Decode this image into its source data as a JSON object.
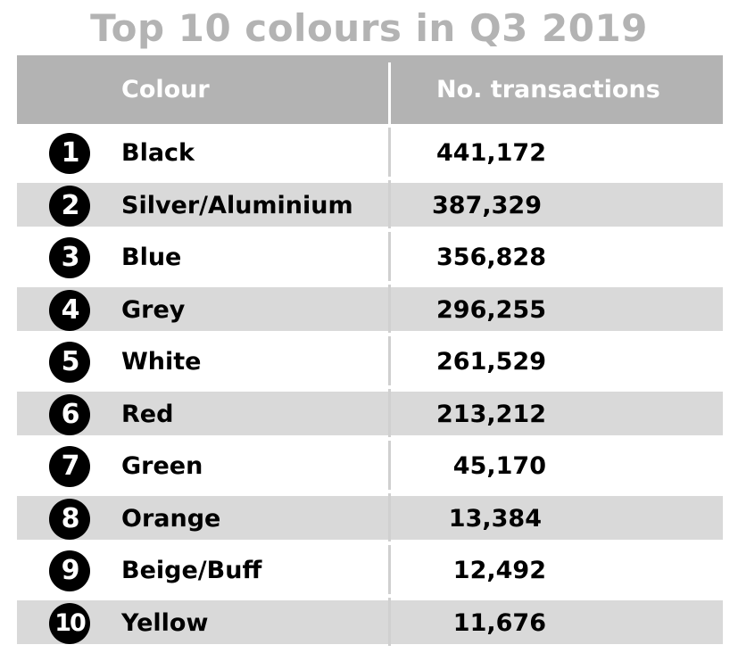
{
  "chart_data": {
    "type": "table",
    "title": "Top 10 colours in Q3 2019",
    "columns": [
      "Colour",
      "No. transactions"
    ],
    "rows": [
      {
        "rank": "1",
        "colour": "Black",
        "transactions": "441,172"
      },
      {
        "rank": "2",
        "colour": "Silver/Aluminium",
        "transactions": "387,329"
      },
      {
        "rank": "3",
        "colour": "Blue",
        "transactions": "356,828"
      },
      {
        "rank": "4",
        "colour": "Grey",
        "transactions": "296,255"
      },
      {
        "rank": "5",
        "colour": "White",
        "transactions": "261,529"
      },
      {
        "rank": "6",
        "colour": "Red",
        "transactions": "213,212"
      },
      {
        "rank": "7",
        "colour": "Green",
        "transactions": "45,170"
      },
      {
        "rank": "8",
        "colour": "Orange",
        "transactions": "13,384"
      },
      {
        "rank": "9",
        "colour": "Beige/Buff",
        "transactions": "12,492"
      },
      {
        "rank": "10",
        "colour": "Yellow",
        "transactions": "11,676"
      }
    ],
    "colors": {
      "header_bg": "#b3b3b3",
      "title": "#b3b3b3",
      "shaded_row": "#d9d9d9",
      "badge": "#000000"
    }
  }
}
